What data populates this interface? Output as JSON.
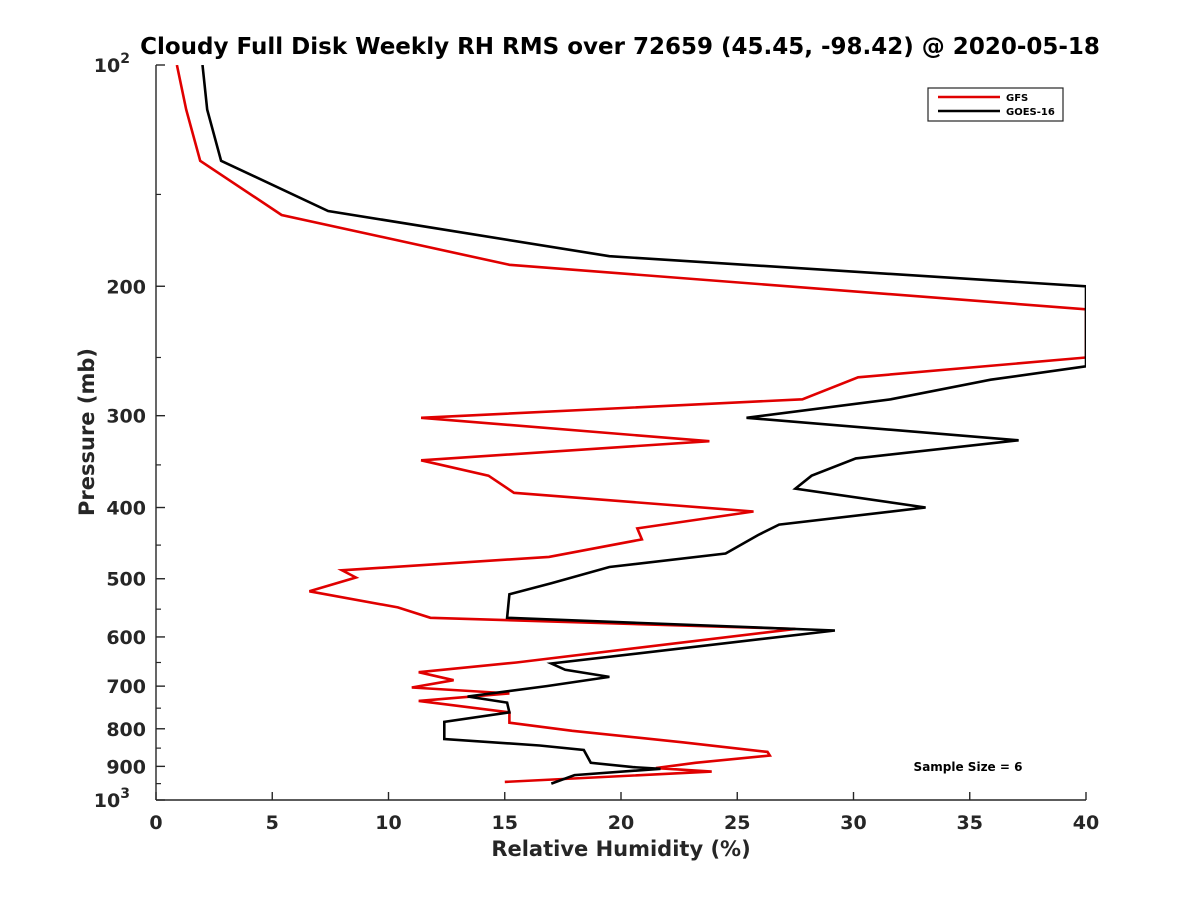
{
  "chart_data": {
    "type": "line",
    "title": "Cloudy Full Disk Weekly RH RMS over 72659 (45.45, -98.42) @ 2020-05-18",
    "xlabel": "Relative Humidity (%)",
    "ylabel": "Pressure (mb)",
    "xlim": [
      0,
      40
    ],
    "ylim": [
      100,
      1000
    ],
    "y_scale": "log",
    "y_reversed": true,
    "grid": false,
    "legend_position": "top-right",
    "x_ticks": [
      "0",
      "5",
      "10",
      "15",
      "20",
      "25",
      "30",
      "35",
      "40"
    ],
    "y_ticks": [
      {
        "value": 100,
        "base": "10",
        "exp": "2"
      },
      {
        "value": 200,
        "label": "200"
      },
      {
        "value": 300,
        "label": "300"
      },
      {
        "value": 400,
        "label": "400"
      },
      {
        "value": 500,
        "label": "500"
      },
      {
        "value": 600,
        "label": "600"
      },
      {
        "value": 700,
        "label": "700"
      },
      {
        "value": 800,
        "label": "800"
      },
      {
        "value": 900,
        "label": "900"
      },
      {
        "value": 1000,
        "base": "10",
        "exp": "3"
      }
    ],
    "annotation": "Sample Size = 6",
    "series": [
      {
        "name": "GFS",
        "color": "#e00000",
        "points": [
          [
            0.9,
            100
          ],
          [
            1.3,
            115
          ],
          [
            1.9,
            135
          ],
          [
            5.4,
            160
          ],
          [
            15.2,
            187
          ],
          [
            40,
            215
          ],
          [
            40,
            250
          ],
          [
            30.2,
            266
          ],
          [
            27.8,
            285
          ],
          [
            11.4,
            302
          ],
          [
            23.8,
            325
          ],
          [
            11.4,
            345
          ],
          [
            14.3,
            362
          ],
          [
            15.4,
            382
          ],
          [
            25.7,
            405
          ],
          [
            20.7,
            427
          ],
          [
            20.9,
            442
          ],
          [
            16.9,
            467
          ],
          [
            8.0,
            487
          ],
          [
            8.6,
            498
          ],
          [
            6.6,
            520
          ],
          [
            10.4,
            547
          ],
          [
            11.8,
            565
          ],
          [
            27.5,
            585
          ],
          [
            15.5,
            650
          ],
          [
            11.3,
            670
          ],
          [
            12.8,
            687
          ],
          [
            11.0,
            703
          ],
          [
            15.2,
            716
          ],
          [
            11.3,
            733
          ],
          [
            15.2,
            760
          ],
          [
            15.2,
            785
          ],
          [
            17.9,
            805
          ],
          [
            22.7,
            835
          ],
          [
            26.3,
            860
          ],
          [
            26.4,
            870
          ],
          [
            23.2,
            890
          ],
          [
            21.5,
            905
          ],
          [
            23.9,
            915
          ],
          [
            15.0,
            945
          ]
        ]
      },
      {
        "name": "GOES-16",
        "color": "#000000",
        "points": [
          [
            2.0,
            100
          ],
          [
            2.2,
            115
          ],
          [
            2.8,
            135
          ],
          [
            7.4,
            158
          ],
          [
            19.5,
            182
          ],
          [
            40,
            200
          ],
          [
            40,
            257
          ],
          [
            35.9,
            268
          ],
          [
            31.6,
            285
          ],
          [
            25.4,
            302
          ],
          [
            37.1,
            324
          ],
          [
            30.1,
            343
          ],
          [
            28.2,
            362
          ],
          [
            27.5,
            377
          ],
          [
            33.1,
            400
          ],
          [
            26.8,
            422
          ],
          [
            25.9,
            436
          ],
          [
            24.5,
            462
          ],
          [
            19.5,
            482
          ],
          [
            17.0,
            507
          ],
          [
            15.2,
            525
          ],
          [
            15.1,
            565
          ],
          [
            29.2,
            588
          ],
          [
            17.0,
            652
          ],
          [
            17.6,
            665
          ],
          [
            19.5,
            680
          ],
          [
            16.8,
            700
          ],
          [
            13.4,
            723
          ],
          [
            15.1,
            737
          ],
          [
            15.2,
            760
          ],
          [
            12.4,
            783
          ],
          [
            12.4,
            826
          ],
          [
            16.5,
            843
          ],
          [
            18.4,
            855
          ],
          [
            18.7,
            890
          ],
          [
            20.5,
            902
          ],
          [
            21.7,
            907
          ],
          [
            18.0,
            925
          ],
          [
            17.0,
            950
          ]
        ]
      }
    ]
  }
}
